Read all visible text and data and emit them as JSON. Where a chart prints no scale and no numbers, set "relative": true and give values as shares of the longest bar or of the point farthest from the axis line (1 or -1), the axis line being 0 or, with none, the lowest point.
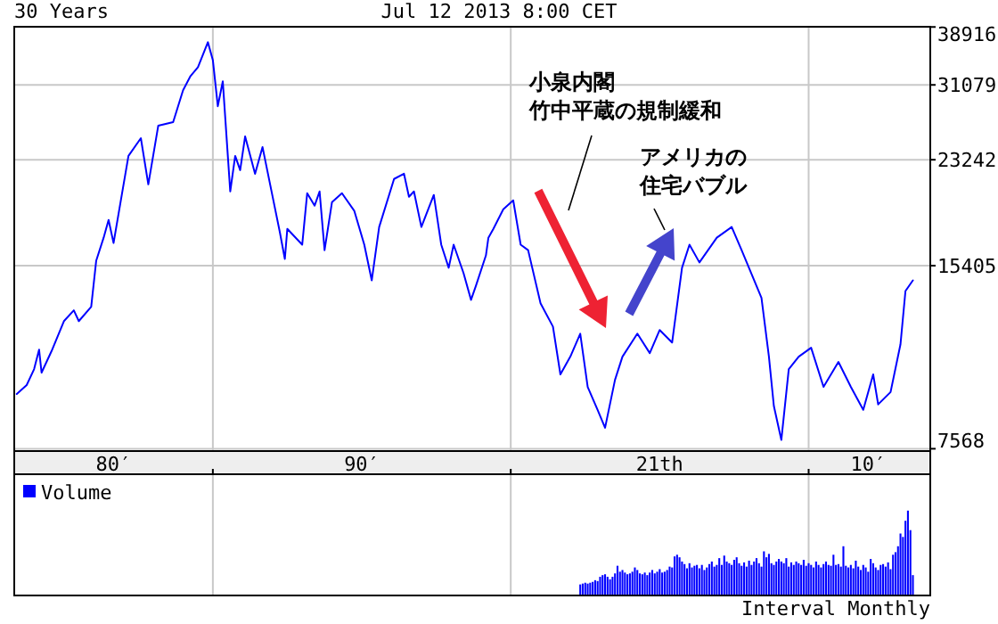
{
  "chart_data": [
    {
      "type": "line",
      "title": "30 Years",
      "subtitle": "Jul 12 2013 8:00 CET",
      "log": true,
      "grid": true,
      "tick_labels": "y",
      "xlim": [
        "1983-05",
        "2014-02"
      ],
      "ylim": [
        7500,
        38950
      ],
      "xticks": [
        {
          "value": "1990-01",
          "label": null
        },
        {
          "value": "2000-01",
          "label": null
        },
        {
          "value": "2010-01",
          "label": null
        }
      ],
      "yticks": [
        7568,
        15405,
        23242,
        31079,
        38916
      ],
      "annotations": [
        "小泉内閣",
        "竹中平蔵の規制緩和",
        "アメリカの",
        "住宅バブル"
      ],
      "series": [
        {
          "color": "#0000ff",
          "x": [
            "1983-06",
            "1983-10",
            "1984-01",
            "1984-03",
            "1984-04",
            "1984-08",
            "1985-01",
            "1985-05",
            "1985-07",
            "1985-12",
            "1986-02",
            "1986-05",
            "1986-07",
            "1986-09",
            "1987-03",
            "1987-08",
            "1987-11",
            "1988-03",
            "1988-09",
            "1989-01",
            "1989-04",
            "1989-07",
            "1989-11",
            "1990-01",
            "1990-03",
            "1990-05",
            "1990-08",
            "1990-10",
            "1990-12",
            "1991-02",
            "1991-06",
            "1991-09",
            "1992-04",
            "1992-06",
            "1992-07",
            "1993-01",
            "1993-03",
            "1993-06",
            "1993-08",
            "1993-10",
            "1994-01",
            "1994-05",
            "1994-10",
            "1995-02",
            "1995-05",
            "1995-08",
            "1996-02",
            "1996-06",
            "1996-08",
            "1996-10",
            "1997-01",
            "1997-06",
            "1997-09",
            "1997-12",
            "1998-02",
            "1998-06",
            "1998-09",
            "1998-11",
            "1999-03",
            "1999-04",
            "1999-06",
            "1999-10",
            "2000-02",
            "2000-05",
            "2000-08",
            "2001-01",
            "2001-06",
            "2001-09",
            "2002-01",
            "2002-05",
            "2002-08",
            "2002-12",
            "2003-03",
            "2003-07",
            "2003-10",
            "2004-04",
            "2004-09",
            "2005-01",
            "2005-06",
            "2005-10",
            "2006-01",
            "2006-05",
            "2006-12",
            "2007-06",
            "2007-10",
            "2008-06",
            "2008-09",
            "2008-11",
            "2009-02",
            "2009-05",
            "2009-09",
            "2010-02",
            "2010-07",
            "2011-01",
            "2011-06",
            "2011-11",
            "2012-03",
            "2012-05",
            "2012-10",
            "2013-02",
            "2013-04",
            "2013-07"
          ],
          "values": [
            9360,
            9690,
            10310,
            11120,
            10170,
            11050,
            12420,
            12950,
            12420,
            13130,
            15700,
            17170,
            18400,
            16820,
            23590,
            25270,
            21120,
            26520,
            26890,
            30440,
            32160,
            33290,
            36680,
            34220,
            28610,
            31510,
            20550,
            23590,
            22320,
            25440,
            22010,
            24420,
            17530,
            15810,
            17770,
            16710,
            20410,
            19450,
            20550,
            16360,
            19720,
            20410,
            19050,
            16710,
            14550,
            17900,
            21570,
            22010,
            20130,
            20550,
            17900,
            20270,
            16710,
            15280,
            16710,
            14960,
            13490,
            14260,
            16030,
            17170,
            17770,
            19180,
            19850,
            16710,
            16360,
            13310,
            12160,
            10100,
            10820,
            11830,
            9620,
            8800,
            8210,
            9890,
            10820,
            11830,
            10970,
            12000,
            11430,
            15280,
            16710,
            15600,
            17170,
            17900,
            16360,
            13590,
            10820,
            8930,
            7830,
            10310,
            10820,
            11200,
            9620,
            10600,
            9620,
            8800,
            10100,
            8990,
            9430,
            11350,
            13960,
            14550
          ]
        }
      ]
    },
    {
      "type": "bar",
      "relative": true,
      "legend": "top left",
      "grid": "x",
      "xlim": [
        "1983-05",
        "2014-02"
      ],
      "xticks": [
        {
          "value": "1986-09",
          "label": "80′"
        },
        {
          "value": "1990-01",
          "label": null
        },
        {
          "value": "1995-01",
          "label": "90′"
        },
        {
          "value": "2000-01",
          "label": null
        },
        {
          "value": "2005-01",
          "label": "21th"
        },
        {
          "value": "2010-01",
          "label": null
        },
        {
          "value": "2012-01",
          "label": "10′"
        }
      ],
      "annotations": [
        "Interval Monthly"
      ],
      "series": [
        {
          "name": "Volume",
          "color": "#0000ff",
          "x": [
            "2002-05",
            "2002-06",
            "2002-07",
            "2002-08",
            "2002-09",
            "2002-10",
            "2002-11",
            "2002-12",
            "2003-01",
            "2003-02",
            "2003-03",
            "2003-04",
            "2003-05",
            "2003-06",
            "2003-07",
            "2003-08",
            "2003-09",
            "2003-10",
            "2003-11",
            "2003-12",
            "2004-01",
            "2004-02",
            "2004-03",
            "2004-04",
            "2004-05",
            "2004-06",
            "2004-07",
            "2004-08",
            "2004-09",
            "2004-10",
            "2004-11",
            "2004-12",
            "2005-01",
            "2005-02",
            "2005-03",
            "2005-04",
            "2005-05",
            "2005-06",
            "2005-07",
            "2005-08",
            "2005-09",
            "2005-10",
            "2005-11",
            "2005-12",
            "2006-01",
            "2006-02",
            "2006-03",
            "2006-04",
            "2006-05",
            "2006-06",
            "2006-07",
            "2006-08",
            "2006-09",
            "2006-10",
            "2006-11",
            "2006-12",
            "2007-01",
            "2007-02",
            "2007-03",
            "2007-04",
            "2007-05",
            "2007-06",
            "2007-07",
            "2007-08",
            "2007-09",
            "2007-10",
            "2007-11",
            "2007-12",
            "2008-01",
            "2008-02",
            "2008-03",
            "2008-04",
            "2008-05",
            "2008-06",
            "2008-07",
            "2008-08",
            "2008-09",
            "2008-10",
            "2008-11",
            "2008-12",
            "2009-01",
            "2009-02",
            "2009-03",
            "2009-04",
            "2009-05",
            "2009-06",
            "2009-07",
            "2009-08",
            "2009-09",
            "2009-10",
            "2009-11",
            "2009-12",
            "2010-01",
            "2010-02",
            "2010-03",
            "2010-04",
            "2010-05",
            "2010-06",
            "2010-07",
            "2010-08",
            "2010-09",
            "2010-10",
            "2010-11",
            "2010-12",
            "2011-01",
            "2011-02",
            "2011-03",
            "2011-04",
            "2011-05",
            "2011-06",
            "2011-07",
            "2011-08",
            "2011-09",
            "2011-10",
            "2011-11",
            "2011-12",
            "2012-01",
            "2012-02",
            "2012-03",
            "2012-04",
            "2012-05",
            "2012-06",
            "2012-07",
            "2012-08",
            "2012-09",
            "2012-10",
            "2012-11",
            "2012-12",
            "2013-01",
            "2013-02",
            "2013-03",
            "2013-04",
            "2013-05",
            "2013-06",
            "2013-07"
          ],
          "values": [
            0.13,
            0.14,
            0.15,
            0.14,
            0.15,
            0.16,
            0.18,
            0.17,
            0.22,
            0.24,
            0.25,
            0.22,
            0.19,
            0.22,
            0.26,
            0.35,
            0.28,
            0.3,
            0.27,
            0.25,
            0.26,
            0.28,
            0.33,
            0.3,
            0.26,
            0.25,
            0.27,
            0.24,
            0.27,
            0.3,
            0.26,
            0.28,
            0.31,
            0.27,
            0.28,
            0.3,
            0.34,
            0.33,
            0.46,
            0.48,
            0.45,
            0.4,
            0.37,
            0.32,
            0.38,
            0.33,
            0.35,
            0.36,
            0.32,
            0.36,
            0.3,
            0.33,
            0.37,
            0.4,
            0.34,
            0.36,
            0.44,
            0.36,
            0.47,
            0.4,
            0.38,
            0.36,
            0.42,
            0.45,
            0.38,
            0.35,
            0.39,
            0.34,
            0.41,
            0.36,
            0.4,
            0.44,
            0.38,
            0.34,
            0.52,
            0.45,
            0.49,
            0.38,
            0.36,
            0.4,
            0.43,
            0.4,
            0.38,
            0.44,
            0.34,
            0.39,
            0.36,
            0.4,
            0.38,
            0.36,
            0.42,
            0.35,
            0.38,
            0.36,
            0.33,
            0.4,
            0.36,
            0.33,
            0.37,
            0.4,
            0.36,
            0.35,
            0.48,
            0.36,
            0.37,
            0.34,
            0.58,
            0.35,
            0.33,
            0.36,
            0.32,
            0.41,
            0.34,
            0.3,
            0.36,
            0.33,
            0.28,
            0.43,
            0.38,
            0.33,
            0.3,
            0.36,
            0.37,
            0.34,
            0.39,
            0.31,
            0.48,
            0.51,
            0.58,
            0.73,
            0.69,
            0.88,
            1,
            0.77,
            0.24
          ]
        }
      ]
    }
  ]
}
